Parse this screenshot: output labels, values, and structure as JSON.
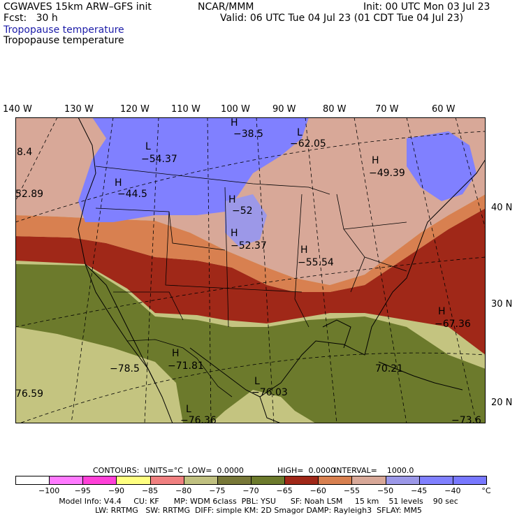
{
  "header": {
    "model": "CGWAVES 15km ARW–GFS init",
    "org": "NCAR/MMM",
    "init": "Init: 00 UTC Mon 03 Jul 23",
    "fcst": "Fcst:   30 h",
    "valid": "Valid: 06 UTC Tue 04 Jul 23 (01 CDT Tue 04 Jul 23)",
    "field_color": "Tropopause temperature",
    "field_black": "Tropopause temperature"
  },
  "lon_labels": [
    "140 W",
    "130 W",
    "120 W",
    "110 W",
    "100 W",
    "90 W",
    "80 W",
    "70 W",
    "60 W"
  ],
  "lat_labels": [
    "40 N",
    "30 N",
    "20 N"
  ],
  "map_labels": [
    {
      "t": "8.4"
    },
    {
      "t": "52.89"
    },
    {
      "t": "L"
    },
    {
      "t": "−54.37"
    },
    {
      "t": "H"
    },
    {
      "t": "−44.5"
    },
    {
      "t": "H"
    },
    {
      "t": "−38.5"
    },
    {
      "t": "L"
    },
    {
      "t": "−62.05"
    },
    {
      "t": "H"
    },
    {
      "t": "−49.39"
    },
    {
      "t": "H"
    },
    {
      "t": "−52"
    },
    {
      "t": "H"
    },
    {
      "t": "−52.37"
    },
    {
      "t": "H"
    },
    {
      "t": "−55.54"
    },
    {
      "t": "H"
    },
    {
      "t": "−67.36"
    },
    {
      "t": "H"
    },
    {
      "t": "−71.81"
    },
    {
      "t": "−78.5"
    },
    {
      "t": "L"
    },
    {
      "t": "−76.03"
    },
    {
      "t": "70.21"
    },
    {
      "t": "L"
    },
    {
      "t": "−76.36"
    },
    {
      "t": "76.59"
    },
    {
      "t": "−73.6"
    }
  ],
  "contours": {
    "units_label": "CONTOURS:  UNITS=°C  LOW=  0.0000",
    "high_label": "HIGH=  0.0000",
    "interval_label": "INTERVAL=    1000.0"
  },
  "colorbar": {
    "colors": [
      "#ffffff",
      "#ff7aff",
      "#ff40d8",
      "#ffff80",
      "#f08080",
      "#c0c080",
      "#787838",
      "#6c7a2c",
      "#a02818",
      "#d88050",
      "#d8a898",
      "#9c98e8",
      "#8080ff",
      "#7878ff"
    ],
    "ticks": [
      "−100",
      "−95",
      "−90",
      "−85",
      "−80",
      "−75",
      "−70",
      "−65",
      "−60",
      "−55",
      "−50",
      "−45",
      "−40",
      "°C"
    ]
  },
  "footer": {
    "line1": "Model Info: V4.4     CU: KF      MP: WDM 6class  PBL: YSU      SF: Noah LSM     15 km    51 levels    90 sec",
    "line2": "LW: RRTMG   SW: RRTMG  DIFF: simple KM: 2D Smagor DAMP: Rayleigh3  SFLAY: MM5"
  }
}
